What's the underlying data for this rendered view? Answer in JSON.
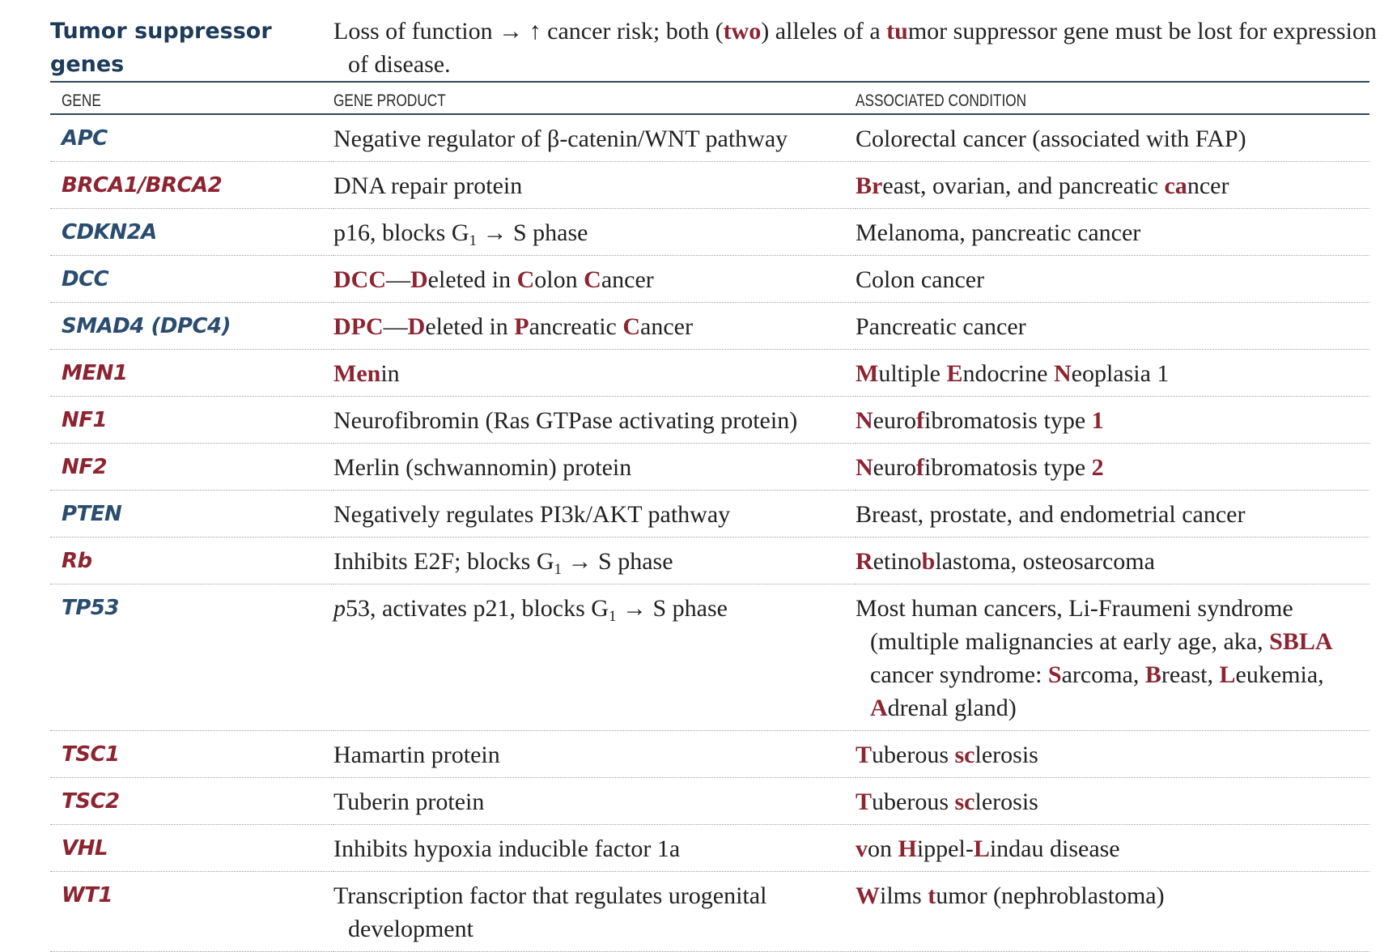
{
  "header": {
    "title": "Tumor suppressor genes",
    "intro_parts": [
      {
        "t": "Loss of function → ↑ cancer risk; both ("
      },
      {
        "t": "two",
        "h": true
      },
      {
        "t": ") alleles of a "
      },
      {
        "t": "tu",
        "h": true
      },
      {
        "t": "mor suppressor gene must be lost for expression of disease."
      }
    ]
  },
  "columns": {
    "gene": "GENE",
    "product": "GENE PRODUCT",
    "condition": "ASSOCIATED CONDITION"
  },
  "rows": [
    {
      "gene": "APC",
      "red": false,
      "product": [
        {
          "t": "Negative regulator of β-catenin/WNT pathway"
        }
      ],
      "condition": [
        {
          "t": "Colorectal cancer (associated with FAP)"
        }
      ]
    },
    {
      "gene": "BRCA1/BRCA2",
      "red": true,
      "product": [
        {
          "t": "DNA repair protein"
        }
      ],
      "condition": [
        {
          "t": "Br",
          "h": true
        },
        {
          "t": "east, ovarian, and pancreatic "
        },
        {
          "t": "ca",
          "h": true
        },
        {
          "t": "ncer"
        }
      ]
    },
    {
      "gene": "CDKN2A",
      "red": false,
      "product": [
        {
          "t": "p16, blocks G"
        },
        {
          "t": "1",
          "sub": true
        },
        {
          "t": " → S phase"
        }
      ],
      "condition": [
        {
          "t": "Melanoma, pancreatic cancer"
        }
      ]
    },
    {
      "gene": "DCC",
      "red": false,
      "product": [
        {
          "t": "DCC",
          "h": true
        },
        {
          "t": "—"
        },
        {
          "t": "D",
          "h": true
        },
        {
          "t": "eleted in "
        },
        {
          "t": "C",
          "h": true
        },
        {
          "t": "olon "
        },
        {
          "t": "C",
          "h": true
        },
        {
          "t": "ancer"
        }
      ],
      "condition": [
        {
          "t": "Colon cancer"
        }
      ]
    },
    {
      "gene": "SMAD4 (DPC4)",
      "red": false,
      "product": [
        {
          "t": "DPC",
          "h": true
        },
        {
          "t": "—"
        },
        {
          "t": "D",
          "h": true
        },
        {
          "t": "eleted in "
        },
        {
          "t": "P",
          "h": true
        },
        {
          "t": "ancreatic "
        },
        {
          "t": "C",
          "h": true
        },
        {
          "t": "ancer"
        }
      ],
      "condition": [
        {
          "t": "Pancreatic cancer"
        }
      ]
    },
    {
      "gene": "MEN1",
      "red": true,
      "product": [
        {
          "t": "Men",
          "h": true
        },
        {
          "t": "in"
        }
      ],
      "condition": [
        {
          "t": "M",
          "h": true
        },
        {
          "t": "ultiple "
        },
        {
          "t": "E",
          "h": true
        },
        {
          "t": "ndocrine "
        },
        {
          "t": "N",
          "h": true
        },
        {
          "t": "eoplasia 1"
        }
      ]
    },
    {
      "gene": "NF1",
      "red": true,
      "product": [
        {
          "t": "Neurofibromin (Ras GTPase activating protein)"
        }
      ],
      "condition": [
        {
          "t": "N",
          "h": true
        },
        {
          "t": "euro"
        },
        {
          "t": "f",
          "h": true
        },
        {
          "t": "ibromatosis type "
        },
        {
          "t": "1",
          "h": true
        }
      ]
    },
    {
      "gene": "NF2",
      "red": true,
      "product": [
        {
          "t": "Merlin (schwannomin) protein"
        }
      ],
      "condition": [
        {
          "t": "N",
          "h": true
        },
        {
          "t": "euro"
        },
        {
          "t": "f",
          "h": true
        },
        {
          "t": "ibromatosis type "
        },
        {
          "t": "2",
          "h": true
        }
      ]
    },
    {
      "gene": "PTEN",
      "red": false,
      "product": [
        {
          "t": "Negatively regulates PI3k/AKT pathway"
        }
      ],
      "condition": [
        {
          "t": "Breast, prostate, and endometrial cancer"
        }
      ]
    },
    {
      "gene": "Rb",
      "red": true,
      "product": [
        {
          "t": "Inhibits E2F; blocks G"
        },
        {
          "t": "1",
          "sub": true
        },
        {
          "t": " → S phase"
        }
      ],
      "condition": [
        {
          "t": "R",
          "h": true
        },
        {
          "t": "etino"
        },
        {
          "t": "b",
          "h": true
        },
        {
          "t": "lastoma, osteosarcoma"
        }
      ]
    },
    {
      "gene": "TP53",
      "red": false,
      "product": [
        {
          "t": "p",
          "i": true
        },
        {
          "t": "53, activates p21, blocks G"
        },
        {
          "t": "1",
          "sub": true
        },
        {
          "t": " → S phase"
        }
      ],
      "condition": [
        {
          "t": "Most human cancers, Li-Fraumeni syndrome (multiple malignancies at early age, aka, "
        },
        {
          "t": "SBLA",
          "h": true
        },
        {
          "t": " cancer syndrome: "
        },
        {
          "t": "S",
          "h": true
        },
        {
          "t": "arcoma, "
        },
        {
          "t": "B",
          "h": true
        },
        {
          "t": "reast, "
        },
        {
          "t": "L",
          "h": true
        },
        {
          "t": "eukemia, "
        },
        {
          "t": "A",
          "h": true
        },
        {
          "t": "drenal gland)"
        }
      ]
    },
    {
      "gene": "TSC1",
      "red": true,
      "product": [
        {
          "t": "Hamartin protein"
        }
      ],
      "condition": [
        {
          "t": "T",
          "h": true
        },
        {
          "t": "uberous "
        },
        {
          "t": "sc",
          "h": true
        },
        {
          "t": "lerosis"
        }
      ]
    },
    {
      "gene": "TSC2",
      "red": true,
      "product": [
        {
          "t": "Tuberin protein"
        }
      ],
      "condition": [
        {
          "t": "T",
          "h": true
        },
        {
          "t": "uberous "
        },
        {
          "t": "sc",
          "h": true
        },
        {
          "t": "lerosis"
        }
      ]
    },
    {
      "gene": "VHL",
      "red": true,
      "product": [
        {
          "t": "Inhibits hypoxia inducible factor 1a"
        }
      ],
      "condition": [
        {
          "t": "v",
          "h": true
        },
        {
          "t": "on "
        },
        {
          "t": "H",
          "h": true
        },
        {
          "t": "ippel-"
        },
        {
          "t": "L",
          "h": true
        },
        {
          "t": "indau disease"
        }
      ]
    },
    {
      "gene": "WT1",
      "red": true,
      "product": [
        {
          "t": "Transcription factor that regulates urogenital development"
        }
      ],
      "condition": [
        {
          "t": "W",
          "h": true
        },
        {
          "t": "ilms "
        },
        {
          "t": "t",
          "h": true
        },
        {
          "t": "umor (nephroblastoma)"
        }
      ]
    }
  ]
}
